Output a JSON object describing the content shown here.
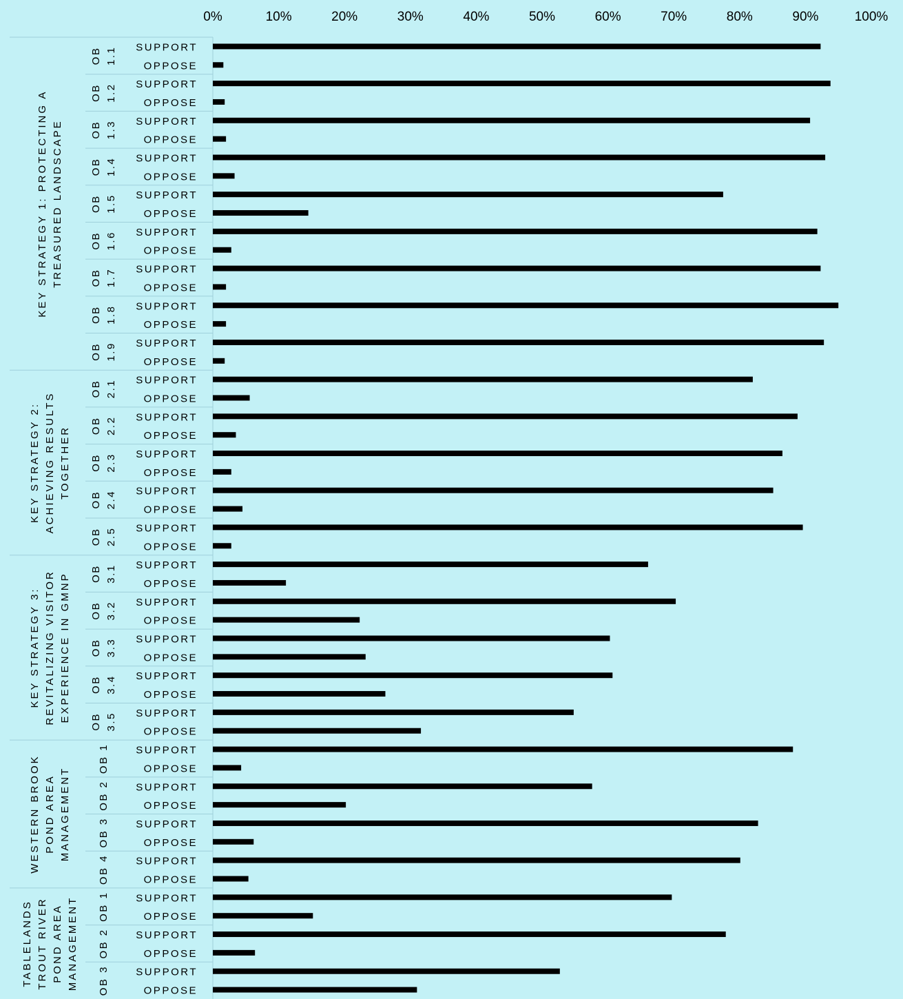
{
  "chart_data": {
    "type": "bar",
    "orientation": "horizontal",
    "xlim": [
      0,
      100
    ],
    "x_ticks": [
      "0%",
      "10%",
      "20%",
      "30%",
      "40%",
      "50%",
      "60%",
      "70%",
      "80%",
      "90%",
      "100%"
    ],
    "groups": [
      {
        "label_lines": [
          "KEY STRATEGY 1: PROTECTING A",
          "TREASURED LANDSCAPE"
        ],
        "objectives": [
          {
            "label_lines": [
              "OB",
              "1.1"
            ],
            "support": 92.3,
            "oppose": 1.6
          },
          {
            "label_lines": [
              "OB",
              "1.2"
            ],
            "support": 93.8,
            "oppose": 1.8
          },
          {
            "label_lines": [
              "OB",
              "1.3"
            ],
            "support": 90.7,
            "oppose": 2.0
          },
          {
            "label_lines": [
              "OB",
              "1.4"
            ],
            "support": 93.0,
            "oppose": 3.3
          },
          {
            "label_lines": [
              "OB",
              "1.5"
            ],
            "support": 77.5,
            "oppose": 14.5
          },
          {
            "label_lines": [
              "OB",
              "1.6"
            ],
            "support": 91.8,
            "oppose": 2.8
          },
          {
            "label_lines": [
              "OB",
              "1.7"
            ],
            "support": 92.3,
            "oppose": 2.0
          },
          {
            "label_lines": [
              "OB",
              "1.8"
            ],
            "support": 95.0,
            "oppose": 2.0
          },
          {
            "label_lines": [
              "OB",
              "1.9"
            ],
            "support": 92.8,
            "oppose": 1.8
          }
        ]
      },
      {
        "label_lines": [
          "KEY STRATEGY 2:",
          "ACHIEVING RESULTS",
          "TOGETHER"
        ],
        "objectives": [
          {
            "label_lines": [
              "OB",
              "2.1"
            ],
            "support": 82.0,
            "oppose": 5.6
          },
          {
            "label_lines": [
              "OB",
              "2.2"
            ],
            "support": 88.8,
            "oppose": 3.5
          },
          {
            "label_lines": [
              "OB",
              "2.3"
            ],
            "support": 86.5,
            "oppose": 2.8
          },
          {
            "label_lines": [
              "OB",
              "2.4"
            ],
            "support": 85.1,
            "oppose": 4.5
          },
          {
            "label_lines": [
              "OB",
              "2.5"
            ],
            "support": 89.6,
            "oppose": 2.8
          }
        ]
      },
      {
        "label_lines": [
          "KEY STRATEGY 3:",
          "REVITALIZING VISITOR",
          "EXPERIENCE IN GMNP"
        ],
        "objectives": [
          {
            "label_lines": [
              "OB",
              "3.1"
            ],
            "support": 66.1,
            "oppose": 11.1
          },
          {
            "label_lines": [
              "OB",
              "3.2"
            ],
            "support": 70.3,
            "oppose": 22.3
          },
          {
            "label_lines": [
              "OB",
              "3.3"
            ],
            "support": 60.3,
            "oppose": 23.2
          },
          {
            "label_lines": [
              "OB",
              "3.4"
            ],
            "support": 60.7,
            "oppose": 26.2
          },
          {
            "label_lines": [
              "OB",
              "3.5"
            ],
            "support": 54.8,
            "oppose": 31.6
          }
        ]
      },
      {
        "label_lines": [
          "WESTERN BROOK",
          "POND AREA",
          "MANAGEMENT"
        ],
        "objectives": [
          {
            "label_lines": [
              "OB 1"
            ],
            "support": 88.1,
            "oppose": 4.3
          },
          {
            "label_lines": [
              "OB 2"
            ],
            "support": 57.6,
            "oppose": 20.2
          },
          {
            "label_lines": [
              "OB 3"
            ],
            "support": 82.8,
            "oppose": 6.2
          },
          {
            "label_lines": [
              "OB 4"
            ],
            "support": 80.1,
            "oppose": 5.4
          }
        ]
      },
      {
        "label_lines": [
          "TABLELANDS",
          "TROUT RIVER",
          "POND AREA",
          "MANAGEMENT"
        ],
        "objectives": [
          {
            "label_lines": [
              "OB 1"
            ],
            "support": 69.7,
            "oppose": 15.2
          },
          {
            "label_lines": [
              "OB 2"
            ],
            "support": 77.9,
            "oppose": 6.4
          },
          {
            "label_lines": [
              "OB 3"
            ],
            "support": 52.7,
            "oppose": 31.0
          }
        ]
      }
    ],
    "row_labels": {
      "support": "SUPPORT",
      "oppose": "OPPOSE"
    },
    "legend": "none",
    "grid": false
  },
  "colors": {
    "background": "#C3F1F6",
    "bars": "#000000",
    "separators": "#9FD0DB"
  }
}
